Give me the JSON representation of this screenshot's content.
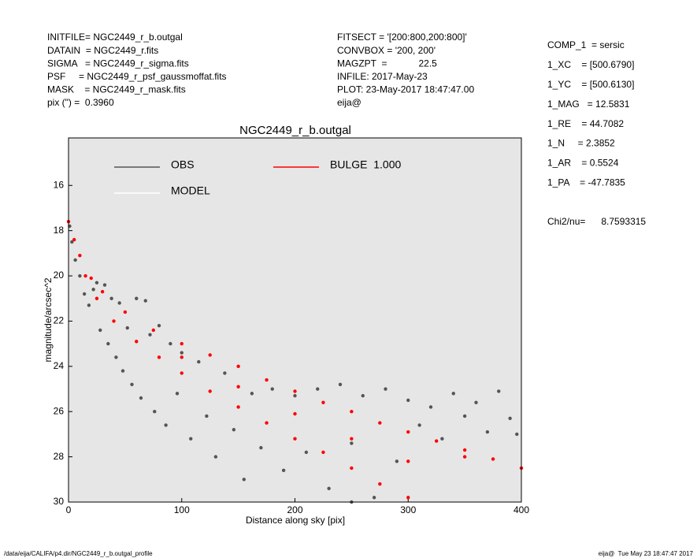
{
  "header_left": [
    "INITFILE= NGC2449_r_b.outgal",
    "DATAIN  = NGC2449_r.fits",
    "SIGMA   = NGC2449_r_sigma.fits",
    "PSF     = NGC2449_r_psf_gaussmoffat.fits",
    "MASK    = NGC2449_r_mask.fits",
    "pix (\") =  0.3960"
  ],
  "header_mid": [
    "FITSECT = '[200:800,200:800]'",
    "CONVBOX = '200, 200'",
    "MAGZPT  =            22.5",
    "INFILE: 2017-May-23",
    "PLOT: 23-May-2017 18:47:47.00",
    "eija@"
  ],
  "params": [
    "COMP_1  = sersic",
    "1_XC    = [500.6790]",
    "1_YC    = [500.6130]",
    "1_MAG   = 12.5831",
    "1_RE    = 44.7082",
    "1_N     = 2.3852",
    "1_AR    = 0.5524",
    "1_PA    = -47.7835"
  ],
  "chi2": "Chi2/nu=      8.7593315",
  "footer_left": "/data/eija/CALIFA/p4.dir/NGC2449_r_b.outgal_profile",
  "footer_right": "eija@  Tue May 23 18:47:47 2017",
  "chart_data": {
    "type": "scatter",
    "title": "NGC2449_r_b.outgal",
    "x_label": "Distance along sky [pix]",
    "y_label": "magnitude/arcsec^2",
    "xlim": [
      0,
      400
    ],
    "ylim": [
      30,
      13.9
    ],
    "xticks": [
      0,
      100,
      200,
      300,
      400
    ],
    "yticks": [
      16,
      18,
      20,
      22,
      24,
      26,
      28,
      30
    ],
    "series": [
      {
        "name": "OBS",
        "color": "#555555",
        "x": [
          1,
          3,
          6,
          10,
          14,
          18,
          22,
          25,
          28,
          32,
          35,
          38,
          42,
          45,
          48,
          52,
          56,
          60,
          64,
          68,
          72,
          76,
          80,
          86,
          90,
          96,
          100,
          108,
          115,
          122,
          130,
          138,
          146,
          155,
          162,
          170,
          180,
          190,
          200,
          210,
          220,
          230,
          240,
          250,
          260,
          270,
          280,
          290,
          300,
          310,
          320,
          330,
          340,
          350,
          360,
          370,
          380,
          390,
          396,
          250
        ],
        "values": [
          17.8,
          18.5,
          19.3,
          20.0,
          20.8,
          21.3,
          20.6,
          20.3,
          22.4,
          20.4,
          23.0,
          21.0,
          23.6,
          21.2,
          24.2,
          22.3,
          24.8,
          21.0,
          25.4,
          21.1,
          22.6,
          26.0,
          22.2,
          26.6,
          23.0,
          25.2,
          23.4,
          27.2,
          23.8,
          26.2,
          28.0,
          24.3,
          26.8,
          29.0,
          25.2,
          27.6,
          25.0,
          28.6,
          25.3,
          27.8,
          25.0,
          29.4,
          24.8,
          27.4,
          25.3,
          29.8,
          25.0,
          28.2,
          25.5,
          26.6,
          25.8,
          27.2,
          25.2,
          26.2,
          25.6,
          26.9,
          25.1,
          26.3,
          27.0,
          30.0
        ]
      },
      {
        "name": "MODEL",
        "color": "#ffffff",
        "x": [],
        "values": []
      },
      {
        "name": "BULGE  1.000",
        "color": "#ff0000",
        "x": [
          0,
          5,
          10,
          20,
          30,
          50,
          75,
          100,
          125,
          150,
          175,
          200,
          225,
          250,
          275,
          300,
          325,
          350,
          375,
          400,
          15,
          25,
          40,
          60,
          80,
          100,
          125,
          150,
          175,
          200,
          225,
          250,
          275,
          300,
          100,
          150,
          200,
          250,
          300,
          350
        ],
        "values": [
          17.6,
          18.4,
          19.1,
          20.1,
          20.7,
          21.6,
          22.4,
          23.0,
          23.5,
          24.0,
          24.6,
          25.1,
          25.6,
          26.0,
          26.5,
          26.9,
          27.3,
          27.7,
          28.1,
          28.5,
          20.0,
          21.0,
          22.0,
          22.9,
          23.6,
          24.3,
          25.1,
          25.8,
          26.5,
          27.2,
          27.8,
          28.5,
          29.2,
          29.8,
          23.6,
          24.9,
          26.1,
          27.2,
          28.2,
          28.0
        ]
      }
    ]
  }
}
